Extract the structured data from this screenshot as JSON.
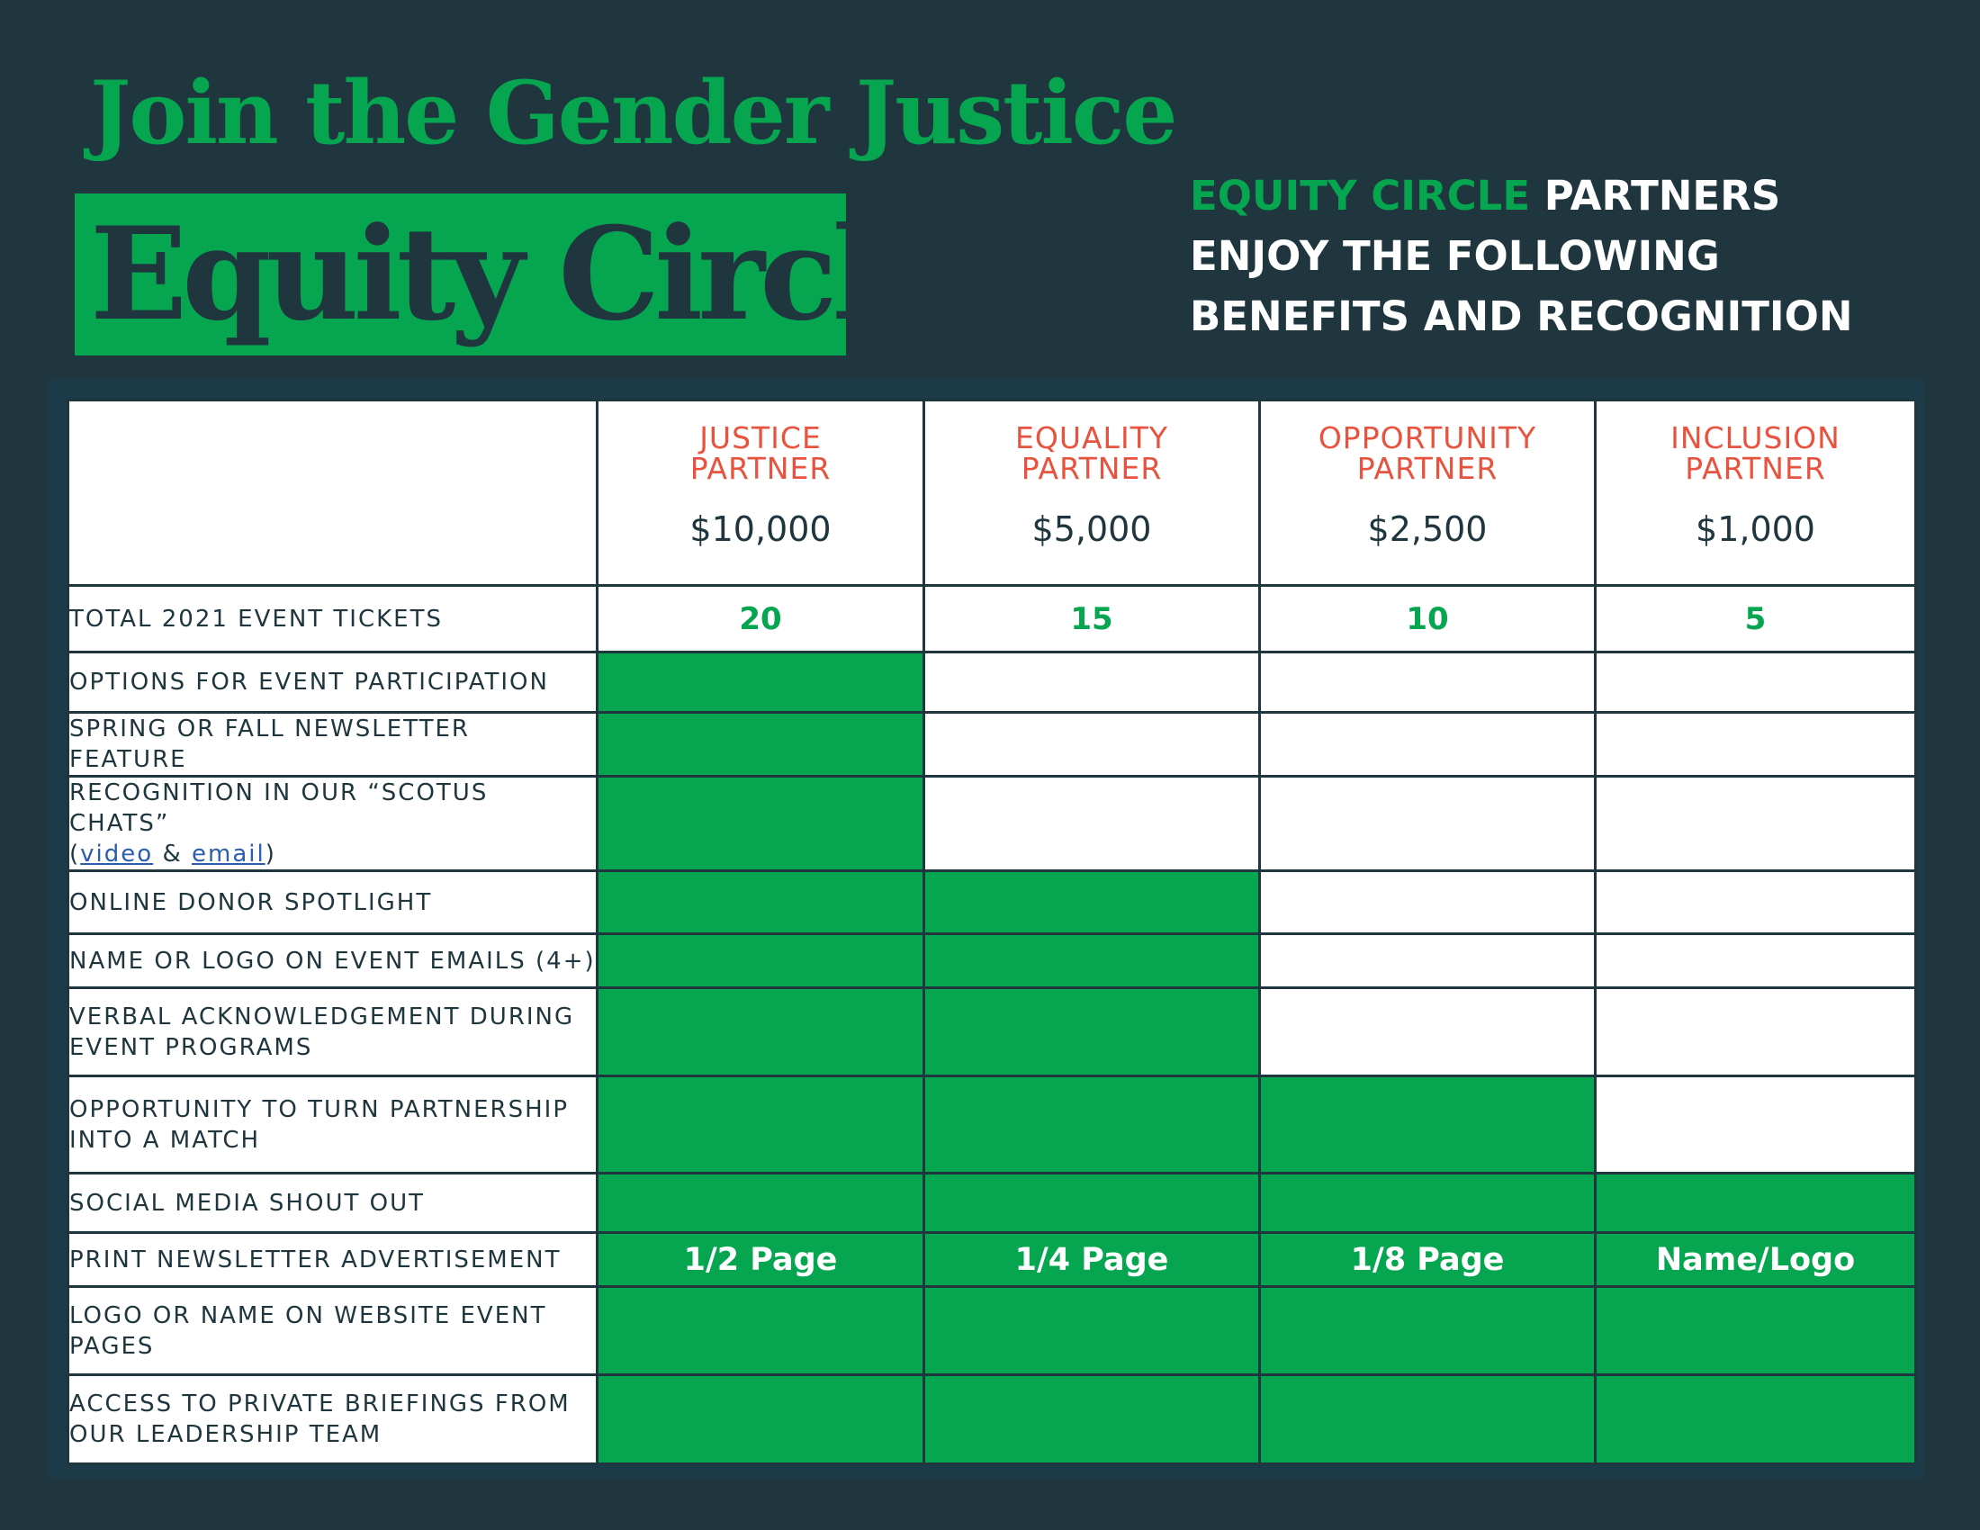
{
  "header": {
    "headline": "Join the Gender Justice",
    "title": "Equity Circle",
    "intro_accent": "EQUITY CIRCLE",
    "intro_rest": "PARTNERS ENJOY THE FOLLOWING BENEFITS AND RECOGNITION"
  },
  "colors": {
    "background": "#20363e",
    "accent_green": "#06a550",
    "tier_red": "#e8533f",
    "cell_white": "#ffffff"
  },
  "tiers": [
    {
      "line1": "JUSTICE",
      "line2": "PARTNER",
      "price": "$10,000"
    },
    {
      "line1": "EQUALITY",
      "line2": "PARTNER",
      "price": "$5,000"
    },
    {
      "line1": "OPPORTUNITY",
      "line2": "PARTNER",
      "price": "$2,500"
    },
    {
      "line1": "INCLUSION",
      "line2": "PARTNER",
      "price": "$1,000"
    }
  ],
  "rows": {
    "tickets": {
      "label": "TOTAL 2021 EVENT TICKETS",
      "values": [
        "20",
        "15",
        "10",
        "5"
      ]
    },
    "participation": {
      "label": "OPTIONS FOR EVENT PARTICIPATION"
    },
    "newsletter_feature": {
      "label": "SPRING OR FALL NEWSLETTER FEATURE"
    },
    "scotus": {
      "label": "RECOGNITION IN OUR “SCOTUS CHATS”",
      "open": "(",
      "link_video": "video",
      "amp": " & ",
      "link_email": "email",
      "close": ")"
    },
    "spotlight": {
      "label": "ONLINE DONOR SPOTLIGHT"
    },
    "event_emails": {
      "label": "NAME OR LOGO ON EVENT EMAILS (4+)"
    },
    "verbal": {
      "label": "VERBAL ACKNOWLEDGEMENT DURING EVENT PROGRAMS"
    },
    "match": {
      "label": "OPPORTUNITY TO TURN PARTNERSHIP INTO A MATCH"
    },
    "social": {
      "label": "SOCIAL MEDIA SHOUT OUT"
    },
    "print_ad": {
      "label": "PRINT NEWSLETTER ADVERTISEMENT",
      "values": [
        "1/2 Page",
        "1/4 Page",
        "1/8 Page",
        "Name/Logo"
      ]
    },
    "website": {
      "label": "LOGO OR NAME ON WEBSITE EVENT PAGES"
    },
    "briefings": {
      "label": "ACCESS TO PRIVATE BRIEFINGS FROM OUR LEADERSHIP TEAM"
    }
  }
}
